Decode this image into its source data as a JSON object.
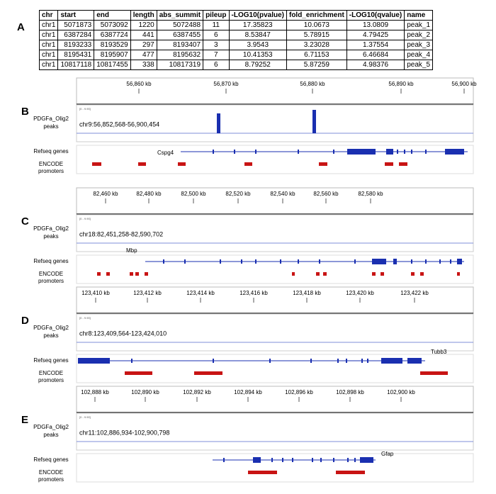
{
  "table": {
    "label": "A",
    "headers": [
      "chr",
      "start",
      "end",
      "length",
      "abs_summit",
      "pileup",
      "-LOG10(pvalue)",
      "fold_enrichment",
      "-LOG10(qvalue)",
      "name"
    ],
    "rows": [
      [
        "chr1",
        "5071873",
        "5073092",
        "1220",
        "5072488",
        "11",
        "17.35823",
        "10.0673",
        "13.0809",
        "peak_1"
      ],
      [
        "chr1",
        "6387284",
        "6387724",
        "441",
        "6387455",
        "6",
        "8.53847",
        "5.78915",
        "4.79425",
        "peak_2"
      ],
      [
        "chr1",
        "8193233",
        "8193529",
        "297",
        "8193407",
        "3",
        "3.9543",
        "3.23028",
        "1.37554",
        "peak_3"
      ],
      [
        "chr1",
        "8195431",
        "8195907",
        "477",
        "8195632",
        "7",
        "10.41353",
        "6.71153",
        "6.46684",
        "peak_4"
      ],
      [
        "chr1",
        "10817118",
        "10817455",
        "338",
        "10817319",
        "6",
        "8.79252",
        "5.87259",
        "4.98376",
        "peak_5"
      ]
    ]
  },
  "panels": [
    {
      "label": "B",
      "ticks": [
        "56,860 kb",
        "56,870 kb",
        "56,880 kb",
        "56,890 kb",
        "56,900 kb"
      ],
      "peak_track": [
        "PDGFa_Olig2",
        "peaks"
      ],
      "range": "[0 - 9.90]",
      "locus": "chr9:56,852,568-56,900,454",
      "gene_track": "Refseq genes",
      "gene": "Cspg4",
      "promoter_track": [
        "ENCODE",
        "promoters"
      ]
    },
    {
      "label": "C",
      "ticks": [
        "82,460 kb",
        "82,480 kb",
        "82,500 kb",
        "82,520 kb",
        "82,540 kb",
        "82,560 kb",
        "82,580 kb"
      ],
      "peak_track": [
        "PDGFa_Olig2",
        "peaks"
      ],
      "range": "[0 - 9.90]",
      "locus": "chr18:82,451,258-82,590,702",
      "gene_track": "Refseq genes",
      "gene": "Mbp",
      "promoter_track": [
        "ENCODE",
        "promoters"
      ]
    },
    {
      "label": "D",
      "ticks": [
        "123,410 kb",
        "123,412 kb",
        "123,414 kb",
        "123,416 kb",
        "123,418 kb",
        "123,420 kb",
        "123,422 kb"
      ],
      "peak_track": [
        "PDGFa_Olig2",
        "peaks"
      ],
      "range": "[0 - 9.90]",
      "locus": "chr8:123,409,564-123,424,010",
      "gene_track": "Refseq genes",
      "gene": "Tubb3",
      "promoter_track": [
        "ENCODE",
        "promoters"
      ]
    },
    {
      "label": "E",
      "ticks": [
        "102,888 kb",
        "102,890 kb",
        "102,892 kb",
        "102,894 kb",
        "102,896 kb",
        "102,898 kb",
        "102,900 kb"
      ],
      "peak_track": [
        "PDGFa_Olig2",
        "peaks"
      ],
      "range": "[0 - 9.90]",
      "locus": "chr11:102,886,934-102,900,798",
      "gene_track": "Refseq genes",
      "gene": "Gfap",
      "promoter_track": [
        "ENCODE",
        "promoters"
      ]
    }
  ]
}
